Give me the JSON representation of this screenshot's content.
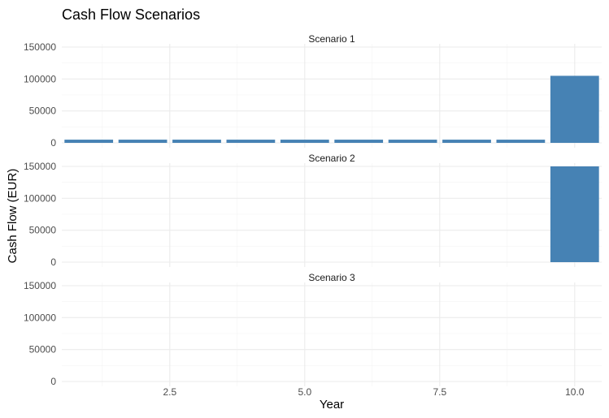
{
  "chart_data": {
    "type": "bar",
    "title": "Cash Flow Scenarios",
    "xlabel": "Year",
    "ylabel": "Cash Flow (EUR)",
    "xlim": [
      0.5,
      10.5
    ],
    "ylim": [
      0,
      150000
    ],
    "x_ticks": [
      2.5,
      5.0,
      7.5,
      10.0
    ],
    "x_tick_labels": [
      "2.5",
      "5.0",
      "7.5",
      "10.0"
    ],
    "y_ticks": [
      0,
      50000,
      100000,
      150000
    ],
    "y_tick_labels": [
      "0",
      "50000",
      "100000",
      "150000"
    ],
    "bar_color": "#4682b4",
    "grid": true,
    "panels": [
      {
        "label": "Scenario 1",
        "x": [
          1,
          2,
          3,
          4,
          5,
          6,
          7,
          8,
          9,
          10
        ],
        "values": [
          5000,
          5000,
          5000,
          5000,
          5000,
          5000,
          5000,
          5000,
          5000,
          105000
        ]
      },
      {
        "label": "Scenario 2",
        "x": [
          1,
          2,
          3,
          4,
          5,
          6,
          7,
          8,
          9,
          10
        ],
        "values": [
          0,
          0,
          0,
          0,
          0,
          0,
          0,
          0,
          0,
          150000
        ]
      },
      {
        "label": "Scenario 3",
        "x": [
          1,
          2,
          3,
          4,
          5,
          6,
          7,
          8,
          9,
          10
        ],
        "values": [
          0,
          0,
          0,
          0,
          0,
          0,
          0,
          0,
          0,
          0
        ]
      }
    ]
  }
}
